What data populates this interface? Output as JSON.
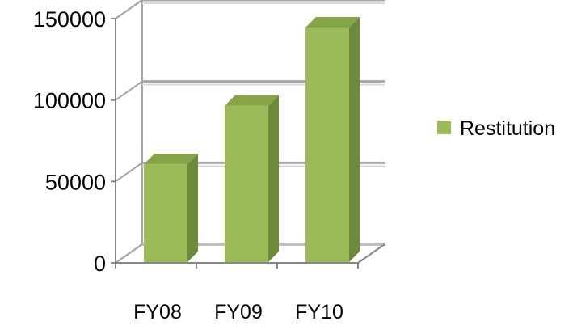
{
  "chart_data": {
    "type": "bar",
    "style": "3d-column",
    "categories": [
      "FY08",
      "FY09",
      "FY10"
    ],
    "series": [
      {
        "name": "Restitution",
        "values": [
          62000,
          98000,
          146000
        ]
      }
    ],
    "y_ticks": [
      "0",
      "50000",
      "100000",
      "150000"
    ],
    "ylim": [
      0,
      150000
    ],
    "grid": true,
    "legend_position": "right",
    "colors": {
      "bar_front": "#9bbb59",
      "bar_side": "#6d8a3a",
      "bar_top": "#84a447",
      "gridline": "#a6a6a6",
      "axis": "#868686"
    }
  }
}
